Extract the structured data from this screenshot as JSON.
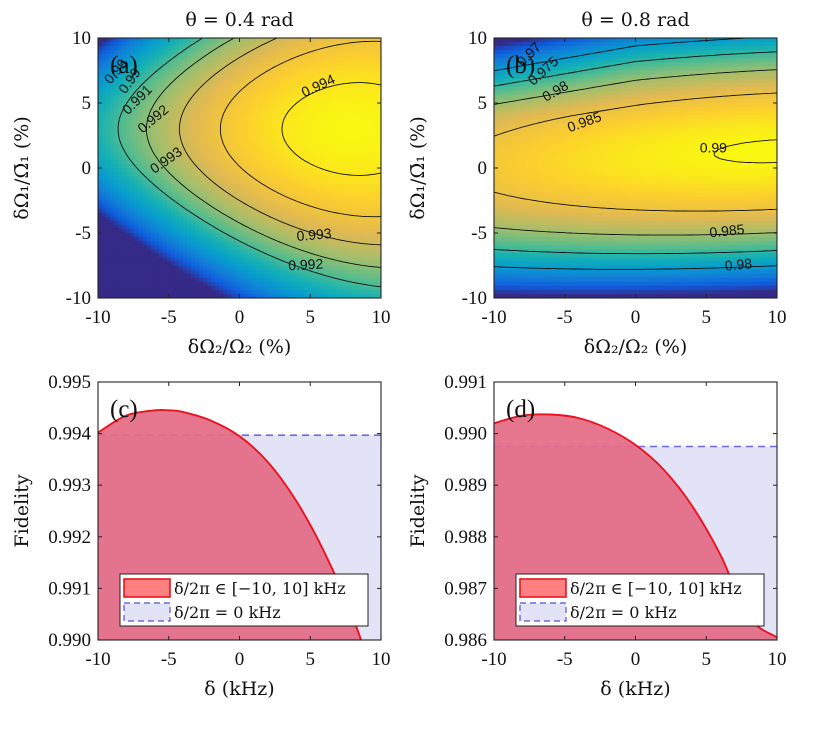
{
  "chart_data": [
    {
      "panel": "(a)",
      "type": "heatmap",
      "title": "θ = 0.4 rad",
      "xlabel": "δΩ₂/Ω₂ (%)",
      "ylabel": "δΩ₁/Ω̄₁ (%)",
      "xlim": [
        -10,
        10
      ],
      "ylim": [
        -10,
        10
      ],
      "xticks": [
        "-10",
        "-5",
        "0",
        "5",
        "10"
      ],
      "yticks": [
        "-10",
        "-5",
        "0",
        "5",
        "10"
      ],
      "colormap": "parula",
      "fidelity_max": 0.9944,
      "fidelity_range": [
        0.985,
        0.9945
      ],
      "contour_labels": [
        "0.99",
        "0.99",
        "0.991",
        "0.992",
        "0.993",
        "0.994",
        "0.993",
        "0.992"
      ]
    },
    {
      "panel": "(b)",
      "type": "heatmap",
      "title": "θ = 0.8 rad",
      "xlabel": "δΩ₂/Ω₂ (%)",
      "ylabel": "δΩ₁/Ω̄₁ (%)",
      "xlim": [
        -10,
        10
      ],
      "ylim": [
        -10,
        10
      ],
      "xticks": [
        "-10",
        "-5",
        "0",
        "5",
        "10"
      ],
      "yticks": [
        "-10",
        "-5",
        "0",
        "5",
        "10"
      ],
      "colormap": "parula",
      "fidelity_max": 0.9902,
      "fidelity_range": [
        0.96,
        0.9905
      ],
      "contour_labels": [
        "0.97",
        "0.975",
        "0.98",
        "0.985",
        "0.99",
        "0.985",
        "0.98"
      ]
    },
    {
      "panel": "(c)",
      "type": "area",
      "xlabel": "δ (kHz)",
      "ylabel": "Fidelity",
      "xlim": [
        -10,
        10
      ],
      "ylim": [
        0.99,
        0.995
      ],
      "xticks": [
        "-10",
        "-5",
        "0",
        "5",
        "10"
      ],
      "yticks": [
        "0.990",
        "0.991",
        "0.992",
        "0.993",
        "0.994",
        "0.995"
      ],
      "x": [
        -10,
        -8,
        -6,
        -5,
        -4,
        -2,
        0,
        2,
        4,
        6,
        8,
        10
      ],
      "series": [
        {
          "name": "δ/2π ∈ [−10, 10] kHz",
          "values": [
            0.99402,
            0.99435,
            0.99445,
            0.99445,
            0.99442,
            0.99425,
            0.99395,
            0.99345,
            0.9927,
            0.9917,
            0.99045,
            0.98885
          ]
        },
        {
          "name": "δ/2π = 0 kHz",
          "values": [
            0.99397,
            0.99397,
            0.99397,
            0.99397,
            0.99397,
            0.99397,
            0.99397,
            0.99397,
            0.99397,
            0.99397,
            0.99397,
            0.99397
          ]
        }
      ],
      "legend": "bottom-left"
    },
    {
      "panel": "(d)",
      "type": "area",
      "xlabel": "δ (kHz)",
      "ylabel": "Fidelity",
      "xlim": [
        -10,
        10
      ],
      "ylim": [
        0.986,
        0.991
      ],
      "xticks": [
        "-10",
        "-5",
        "0",
        "5",
        "10"
      ],
      "yticks": [
        "0.986",
        "0.987",
        "0.988",
        "0.989",
        "0.990",
        "0.991"
      ],
      "x": [
        -10,
        -8,
        -6,
        -4,
        -2,
        0,
        2,
        4,
        6,
        8,
        10
      ],
      "series": [
        {
          "name": "δ/2π ∈ [−10, 10] kHz",
          "values": [
            0.9902,
            0.99035,
            0.99037,
            0.9903,
            0.9901,
            0.98978,
            0.9893,
            0.9886,
            0.98765,
            0.98645,
            0.98605
          ]
        },
        {
          "name": "δ/2π = 0 kHz",
          "values": [
            0.98975,
            0.98975,
            0.98975,
            0.98975,
            0.98975,
            0.98975,
            0.98975,
            0.98975,
            0.98975,
            0.98975,
            0.98975
          ]
        }
      ],
      "legend": "bottom-left"
    }
  ],
  "colors": {
    "range_fill": "#e46b85",
    "range_line": "#e8141e",
    "zero_fill": "#e3e3f8",
    "zero_line": "#6a6ae0",
    "legend_patch": "#ff8080"
  }
}
